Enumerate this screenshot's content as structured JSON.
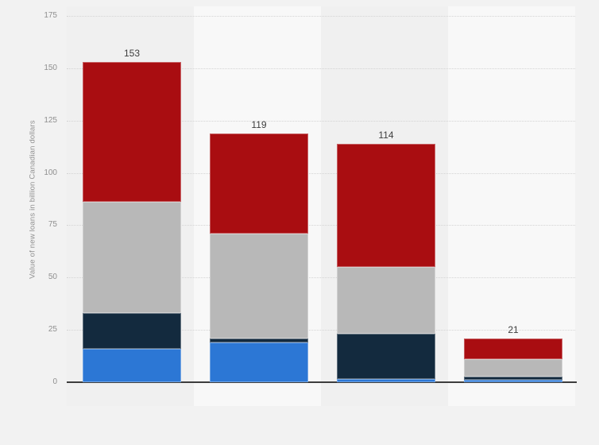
{
  "page": {
    "background_color": "#f2f2f2",
    "band_color_odd": "#f0f0f0",
    "band_color_even": "#f8f8f8",
    "gridline_color": "#d4d4d4",
    "axis_line_color": "#3d3d3d",
    "tick_text_color": "#8f8f8f",
    "value_label_color": "#3d3d3d"
  },
  "chart_data": {
    "type": "bar",
    "stacked": true,
    "title": "",
    "xlabel": "",
    "ylabel": "Value of new loans in billion Canadian dollars",
    "ylim": [
      0,
      175
    ],
    "yticks": [
      0,
      25,
      50,
      75,
      100,
      125,
      150,
      175
    ],
    "grid": "horizontal-dotted",
    "legend_position": "none",
    "categories": [
      "",
      "",
      "",
      ""
    ],
    "totals": [
      153,
      119,
      114,
      21
    ],
    "total_labels": [
      "153",
      "119",
      "114",
      "21"
    ],
    "series": [
      {
        "name": "blue-segment",
        "color": "#2c77d5",
        "values": [
          16,
          19,
          1.5,
          1
        ]
      },
      {
        "name": "dark-navy-segment",
        "color": "#132a3e",
        "values": [
          17,
          2,
          21.5,
          1.5
        ]
      },
      {
        "name": "gray-segment",
        "color": "#b8b8b8",
        "values": [
          53,
          50,
          32,
          8.5
        ]
      },
      {
        "name": "red-segment",
        "color": "#a90d11",
        "values": [
          67,
          48,
          59,
          10
        ]
      }
    ]
  }
}
